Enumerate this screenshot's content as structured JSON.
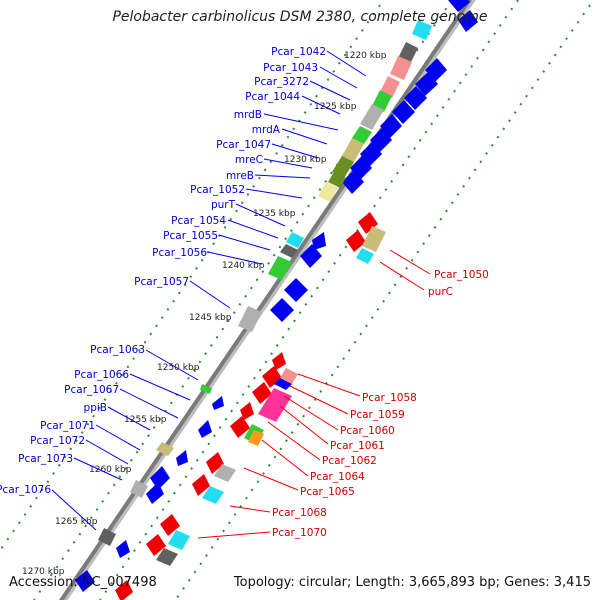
{
  "title": "Pelobacter carbinolicus DSM 2380, complete genome",
  "footer": {
    "accession": "Accession: NC_007498",
    "summary": "Topology: circular; Length: 3,665,893 bp; Genes: 3,415"
  },
  "colors": {
    "backbone": "#8a8a8a",
    "forward_gene": "#0000ee",
    "reverse_gene": "#ee0000",
    "forward_label": "#0000cc",
    "reverse_label": "#cc0000",
    "gc_dots": "#2a8f2a",
    "cog_gray": "#b0b0b0",
    "cog_green": "#33cc33",
    "cog_olive": "#6b8e23",
    "cog_khaki": "#c8bc78",
    "cog_cyan": "#22ddee",
    "cog_pink": "#f49090",
    "cog_magenta": "#ff3399",
    "cog_orange": "#ff9922",
    "cog_lightyellow": "#eee8a0",
    "cog_darkgray": "#606060"
  },
  "kbp_ticks": [
    "1220 kbp",
    "1225 kbp",
    "1230 kbp",
    "1235 kbp",
    "1240 kbp",
    "1245 kbp",
    "1250 kbp",
    "1255 kbp",
    "1260 kbp",
    "1265 kbp",
    "1270 kbp"
  ],
  "forward_labels": [
    "Pcar_1042",
    "Pcar_1043",
    "Pcar_3272",
    "Pcar_1044",
    "mrdB",
    "mrdA",
    "Pcar_1047",
    "mreC",
    "mreB",
    "Pcar_1052",
    "purT",
    "Pcar_1054",
    "Pcar_1055",
    "Pcar_1056",
    "Pcar_1057",
    "Pcar_1063",
    "Pcar_1066",
    "Pcar_1067",
    "ppiB",
    "Pcar_1071",
    "Pcar_1072",
    "Pcar_1073",
    "Pcar_1076"
  ],
  "reverse_labels": [
    "Pcar_1050",
    "purC",
    "Pcar_1058",
    "Pcar_1059",
    "Pcar_1060",
    "Pcar_1061",
    "Pcar_1062",
    "Pcar_1064",
    "Pcar_1065",
    "Pcar_1068",
    "Pcar_1070"
  ]
}
